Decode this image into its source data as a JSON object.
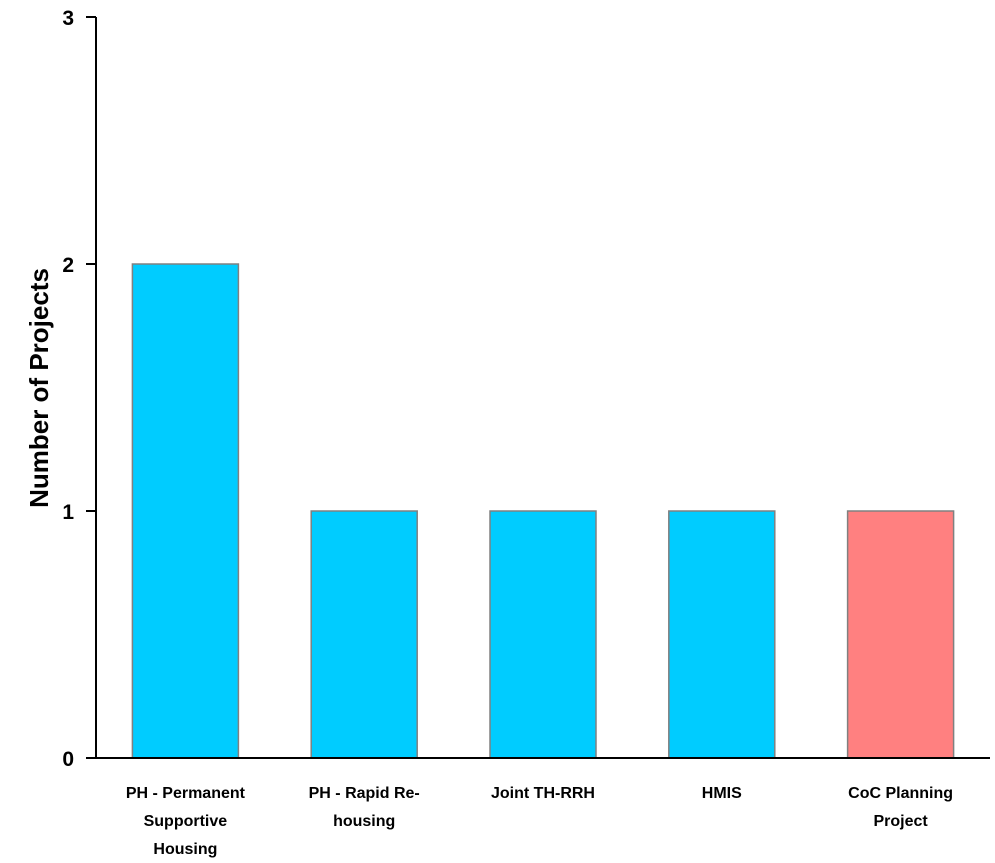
{
  "chart_data": {
    "type": "bar",
    "title": "",
    "xlabel": "",
    "ylabel": "Number of Projects",
    "ylim": [
      0,
      3
    ],
    "yticks": [
      0,
      1,
      2,
      3
    ],
    "grid": false,
    "legend": "none",
    "categories": [
      "PH - Permanent Supportive Housing",
      "PH - Rapid Re-housing",
      "Joint TH-RRH",
      "HMIS",
      "CoC Planning Project"
    ],
    "category_label_lines": [
      [
        "PH - Permanent",
        "Supportive",
        "Housing"
      ],
      [
        "PH - Rapid Re-",
        "housing"
      ],
      [
        "Joint TH-RRH"
      ],
      [
        "HMIS"
      ],
      [
        "CoC Planning",
        "Project"
      ]
    ],
    "values": [
      2,
      1,
      1,
      1,
      1
    ],
    "colors": [
      "#00CCFF",
      "#00CCFF",
      "#00CCFF",
      "#00CCFF",
      "#FF8080"
    ],
    "bar_edge_color": "#808080",
    "axis_color": "#000000"
  }
}
